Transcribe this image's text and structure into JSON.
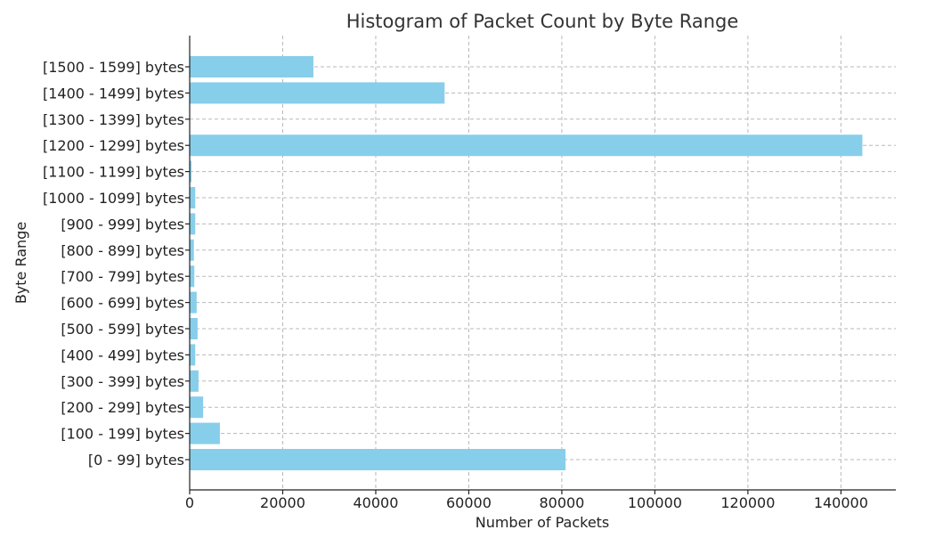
{
  "chart_data": {
    "type": "bar",
    "orientation": "horizontal",
    "title": "Histogram of Packet Count by Byte Range",
    "xlabel": "Number of Packets",
    "ylabel": "Byte Range",
    "categories": [
      "[0 - 99] bytes",
      "[100 - 199] bytes",
      "[200 - 299] bytes",
      "[300 - 399] bytes",
      "[400 - 499] bytes",
      "[500 - 599] bytes",
      "[600 - 699] bytes",
      "[700 - 799] bytes",
      "[800 - 899] bytes",
      "[900 - 999] bytes",
      "[1000 - 1099] bytes",
      "[1100 - 1199] bytes",
      "[1200 - 1299] bytes",
      "[1300 - 1399] bytes",
      "[1400 - 1499] bytes",
      "[1500 - 1599] bytes"
    ],
    "values": [
      80800,
      6500,
      2900,
      1900,
      1200,
      1700,
      1500,
      1000,
      900,
      1200,
      1200,
      400,
      144600,
      0,
      54800,
      26600
    ],
    "xlim": [
      0,
      151800
    ],
    "xticks": [
      0,
      20000,
      40000,
      60000,
      80000,
      100000,
      120000,
      140000
    ],
    "grid": true,
    "bar_color": "#87ceeb"
  }
}
